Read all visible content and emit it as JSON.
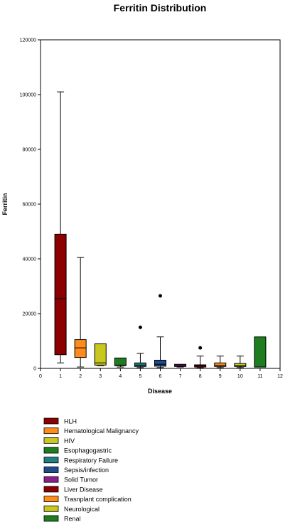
{
  "chart_data": {
    "type": "box",
    "title": "Ferritin Distribution",
    "xlabel": "Disease",
    "ylabel": "Ferritin",
    "xlim": [
      0,
      12
    ],
    "ylim": [
      0,
      120000
    ],
    "x_ticks": [
      0,
      1,
      2,
      3,
      4,
      5,
      6,
      7,
      8,
      9,
      10,
      11,
      12
    ],
    "y_ticks": [
      0,
      20000,
      40000,
      60000,
      80000,
      100000,
      120000
    ],
    "grid": false,
    "legend_position": "bottom-left",
    "series": [
      {
        "name": "HLH",
        "x": 1,
        "color": "#8b0000",
        "min": 2000,
        "q1": 5000,
        "median": 25500,
        "q3": 49000,
        "max": 101000,
        "outliers": []
      },
      {
        "name": "Hematological Malignancy",
        "x": 2,
        "color": "#ff8c1a",
        "min": 500,
        "q1": 4000,
        "median": 7500,
        "q3": 10500,
        "max": 40500,
        "outliers": []
      },
      {
        "name": "HIV",
        "x": 3,
        "color": "#c8c81e",
        "min": 1000,
        "q1": 1200,
        "median": 2000,
        "q3": 9000,
        "max": 9000,
        "outliers": []
      },
      {
        "name": "Esophagogastric",
        "x": 4,
        "color": "#1e7d1e",
        "min": 500,
        "q1": 1000,
        "median": 1200,
        "q3": 3800,
        "max": 3800,
        "outliers": []
      },
      {
        "name": "Respiratory Failure",
        "x": 5,
        "color": "#1e8080",
        "min": 300,
        "q1": 700,
        "median": 1200,
        "q3": 2000,
        "max": 5500,
        "outliers": [
          15000
        ]
      },
      {
        "name": "Sepsis/infection",
        "x": 6,
        "color": "#1e4b8c",
        "min": 300,
        "q1": 800,
        "median": 1500,
        "q3": 3000,
        "max": 11500,
        "outliers": [
          26500
        ]
      },
      {
        "name": "Solid Tumor",
        "x": 7,
        "color": "#8c1e8c",
        "min": 500,
        "q1": 700,
        "median": 1000,
        "q3": 1500,
        "max": 1500,
        "outliers": []
      },
      {
        "name": "Liver Disease",
        "x": 8,
        "color": "#8b0000",
        "min": 200,
        "q1": 500,
        "median": 900,
        "q3": 1300,
        "max": 4500,
        "outliers": [
          7500
        ]
      },
      {
        "name": "Trasnplant complication",
        "x": 9,
        "color": "#ff8c1a",
        "min": 300,
        "q1": 700,
        "median": 1100,
        "q3": 2000,
        "max": 4500,
        "outliers": []
      },
      {
        "name": "Neurological",
        "x": 10,
        "color": "#c8c81e",
        "min": 300,
        "q1": 700,
        "median": 1000,
        "q3": 1800,
        "max": 4500,
        "outliers": []
      },
      {
        "name": "Renal",
        "x": 11,
        "color": "#1e7d1e",
        "min": 500,
        "q1": 500,
        "median": 500,
        "q3": 11500,
        "max": 11500,
        "outliers": []
      }
    ]
  }
}
